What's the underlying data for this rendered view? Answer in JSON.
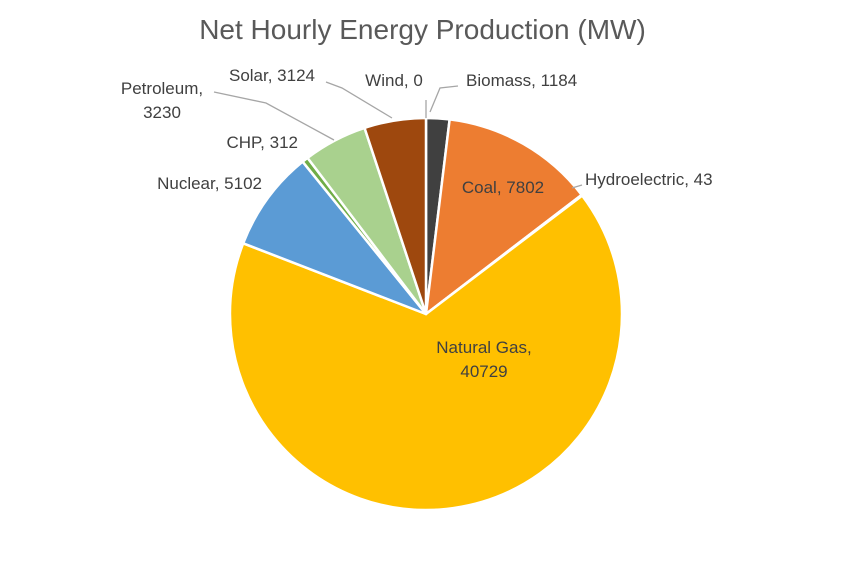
{
  "chart_data": {
    "type": "pie",
    "title": "Net Hourly Energy Production (MW)",
    "slices": [
      {
        "name": "Biomass",
        "value": 1184,
        "color": "#404040",
        "label_lines": [
          "Biomass, 1184"
        ]
      },
      {
        "name": "Coal",
        "value": 7802,
        "color": "#ED7D31",
        "label_lines": [
          "Coal, 7802"
        ]
      },
      {
        "name": "Hydroelectric",
        "value": 43,
        "color": "#A5A5A5",
        "label_lines": [
          "Hydroelectric, 43"
        ]
      },
      {
        "name": "Natural Gas",
        "value": 40729,
        "color": "#FFC000",
        "label_lines": [
          "Natural Gas,",
          "40729"
        ]
      },
      {
        "name": "Nuclear",
        "value": 5102,
        "color": "#5B9BD5",
        "label_lines": [
          "Nuclear, 5102"
        ]
      },
      {
        "name": "CHP",
        "value": 312,
        "color": "#70AD47",
        "label_lines": [
          "CHP, 312"
        ]
      },
      {
        "name": "Petroleum",
        "value": 3230,
        "color": "#A9D18E",
        "label_lines": [
          "Petroleum,",
          "3230"
        ]
      },
      {
        "name": "Solar",
        "value": 3124,
        "color": "#9E480E",
        "label_lines": [
          "Solar, 3124"
        ]
      },
      {
        "name": "Wind",
        "value": 0,
        "color": "#264478",
        "label_lines": [
          "Wind, 0"
        ]
      }
    ],
    "start_angle": "12 o'clock",
    "direction": "clockwise",
    "legend": "none"
  }
}
